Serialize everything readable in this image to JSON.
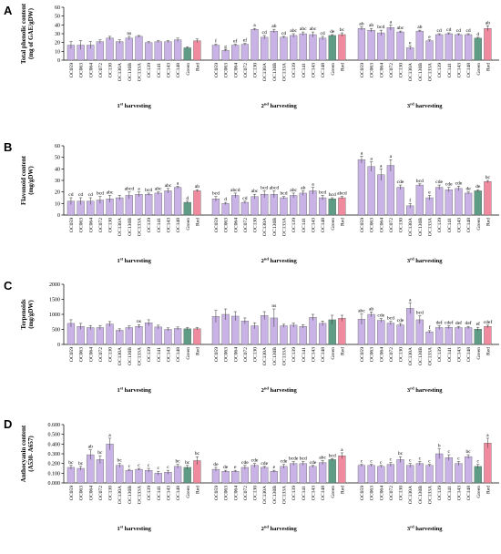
{
  "colors": {
    "purple": "#C9B3E6",
    "green": "#5E9C86",
    "red": "#F08A9E",
    "axis": "#000000"
  },
  "chart_data": [
    {
      "type": "bar",
      "panel": "A",
      "ylabel_lines": [
        "Total phenolic content",
        "(mg of GAE/gDW)"
      ],
      "ylim": [
        0,
        60
      ],
      "yticks": [
        0,
        10,
        20,
        30,
        40,
        50,
        60
      ],
      "categories": [
        "OC059",
        "OC063",
        "OC064",
        "OC072",
        "OC130",
        "OC130A",
        "OC130B",
        "OC133A",
        "OC139",
        "OC141",
        "OC143",
        "OC148",
        "Green",
        "Red"
      ],
      "groups": [
        {
          "label": "1",
          "suffix": "st",
          "rest": " harvesting",
          "values": [
            17,
            17,
            17,
            21,
            25,
            21,
            25,
            27,
            20,
            21,
            21,
            23,
            14,
            22
          ],
          "errors": [
            4,
            5,
            4,
            2,
            2,
            2,
            2,
            1,
            1,
            1,
            1,
            2,
            1,
            2
          ],
          "letters": [
            "",
            "",
            "",
            "",
            "",
            "",
            "ns",
            "",
            "",
            "",
            "",
            "",
            "",
            ""
          ]
        },
        {
          "label": "2",
          "suffix": "nd",
          "rest": " harvesting",
          "values": [
            17,
            11,
            17,
            18,
            35,
            26,
            33,
            26,
            28,
            30,
            29,
            25,
            28,
            29
          ],
          "errors": [
            1,
            1,
            1,
            1,
            1,
            2,
            2,
            1,
            2,
            2,
            3,
            2,
            1,
            2
          ],
          "letters": [
            "f",
            "g",
            "ef",
            "ef",
            "a",
            "cd",
            "ab",
            "cd",
            "abc",
            "abc",
            "abc",
            "cd",
            "de",
            "bc"
          ]
        },
        {
          "label": "3",
          "suffix": "rd",
          "rest": " harvesting",
          "values": [
            36,
            34,
            31,
            37,
            32,
            14,
            33,
            22,
            29,
            30,
            29,
            29,
            25,
            36
          ],
          "errors": [
            2,
            2,
            3,
            3,
            1,
            2,
            1,
            1,
            1,
            1,
            1,
            1,
            1,
            3
          ],
          "letters": [
            "ab",
            "ab",
            "bcd",
            "a",
            "abc",
            "e",
            "ab",
            "e",
            "cd",
            "cd",
            "cd",
            "cd",
            "d",
            "ab"
          ]
        }
      ]
    },
    {
      "type": "bar",
      "panel": "B",
      "ylabel_lines": [
        "Flavonoid content",
        "(mg/gDW)"
      ],
      "ylim": [
        0,
        60
      ],
      "yticks": [
        0,
        10,
        20,
        30,
        40,
        50,
        60
      ],
      "categories": [
        "OC059",
        "OC063",
        "OC064",
        "OC072",
        "OC130",
        "OC130A",
        "OC130B",
        "OC133A",
        "OC139",
        "OC141",
        "OC143",
        "OC148",
        "Green",
        "Red"
      ],
      "groups": [
        {
          "label": "1",
          "suffix": "st",
          "rest": " harvesting",
          "values": [
            12,
            12,
            12,
            13,
            14,
            15,
            17,
            18,
            18,
            19,
            21,
            24,
            11,
            21
          ],
          "errors": [
            3,
            3,
            3,
            3,
            3,
            2,
            3,
            2,
            1,
            1,
            2,
            1,
            1,
            1
          ],
          "letters": [
            "cd",
            "cd",
            "cd",
            "bcd",
            "abc",
            "",
            "abcd",
            "a",
            "bcd",
            "abc",
            "abc",
            "a",
            "d",
            "ab"
          ]
        },
        {
          "label": "2",
          "suffix": "nd",
          "rest": " harvesting",
          "values": [
            14,
            10,
            17,
            11,
            16,
            18,
            18,
            15,
            17,
            19,
            21,
            15,
            14,
            15
          ],
          "errors": [
            2,
            1,
            2,
            1,
            2,
            3,
            3,
            1,
            2,
            2,
            3,
            2,
            1,
            1
          ],
          "letters": [
            "bcd",
            "d",
            "abcd",
            "cd",
            "abc",
            "bcd",
            "abcd",
            "bcd",
            "abc",
            "ab",
            "a",
            "bcd",
            "bcd",
            "abcd"
          ]
        },
        {
          "label": "3",
          "suffix": "rd",
          "rest": " harvesting",
          "values": [
            48,
            42,
            35,
            43,
            24,
            8,
            26,
            15,
            24,
            22,
            23,
            19,
            21,
            29
          ],
          "errors": [
            3,
            4,
            5,
            5,
            2,
            2,
            1,
            2,
            2,
            2,
            2,
            1,
            1,
            1
          ],
          "letters": [
            "a",
            "a",
            "a",
            "a",
            "cde",
            "f",
            "bcd",
            "e",
            "cde",
            "cde",
            "cde",
            "de",
            "de",
            "bc"
          ]
        }
      ]
    },
    {
      "type": "bar",
      "panel": "C",
      "ylabel_lines": [
        "Terpenoids",
        "(mg/gDW)"
      ],
      "ylim": [
        0,
        2000
      ],
      "yticks": [
        0,
        500,
        1000,
        1500,
        2000
      ],
      "categories": [
        "OC059",
        "OC063",
        "OC064",
        "OC072",
        "OC130",
        "OC130A",
        "OC130B",
        "OC133A",
        "OC139",
        "OC141",
        "OC143",
        "OC148",
        "Green",
        "Red"
      ],
      "groups": [
        {
          "label": "1",
          "suffix": "st",
          "rest": " harvesting",
          "values": [
            700,
            600,
            560,
            560,
            680,
            470,
            560,
            600,
            720,
            580,
            500,
            530,
            520,
            520
          ],
          "errors": [
            120,
            100,
            70,
            70,
            80,
            50,
            60,
            60,
            100,
            60,
            50,
            50,
            40,
            40
          ],
          "letters": [
            "",
            "",
            "",
            "",
            "",
            "",
            "",
            "ns",
            "",
            "",
            "",
            "",
            "",
            ""
          ]
        },
        {
          "label": "2",
          "suffix": "nd",
          "rest": " harvesting",
          "values": [
            930,
            1000,
            940,
            780,
            620,
            960,
            880,
            620,
            640,
            600,
            900,
            700,
            820,
            870
          ],
          "errors": [
            200,
            180,
            150,
            100,
            100,
            130,
            300,
            50,
            70,
            60,
            100,
            80,
            150,
            100
          ],
          "letters": [
            "",
            "",
            "",
            "",
            "",
            "",
            "ns",
            "",
            "",
            "",
            "",
            "",
            "",
            ""
          ]
        },
        {
          "label": "3",
          "suffix": "rd",
          "rest": " harvesting",
          "values": [
            840,
            1000,
            800,
            710,
            650,
            1200,
            820,
            420,
            560,
            570,
            560,
            560,
            510,
            600
          ],
          "errors": [
            170,
            80,
            60,
            60,
            50,
            180,
            130,
            40,
            60,
            50,
            40,
            40,
            60,
            40
          ],
          "letters": [
            "abc",
            "ab",
            "cde",
            "bcd",
            "cde",
            "a",
            "bcd",
            "f",
            "def",
            "cdef",
            "def",
            "def",
            "ef",
            "cdef"
          ]
        }
      ]
    },
    {
      "type": "bar",
      "panel": "D",
      "ylabel_lines": [
        "Anthocyanin content",
        "(A530- A657)"
      ],
      "ylim": [
        0,
        0.6
      ],
      "yticks": [
        0,
        0.1,
        0.2,
        0.3,
        0.4,
        0.5,
        0.6
      ],
      "ytick_labels": [
        "0.000",
        "0.100",
        "0.200",
        "0.300",
        "0.400",
        "0.500",
        "0.600"
      ],
      "categories": [
        "OC059",
        "OC063",
        "OC064",
        "OC072",
        "OC130",
        "OC130A",
        "OC130B",
        "OC133A",
        "OC139",
        "OC141",
        "OC143",
        "OC148",
        "Green",
        "Red"
      ],
      "groups": [
        {
          "label": "1",
          "suffix": "st",
          "rest": " harvesting",
          "values": [
            0.16,
            0.15,
            0.29,
            0.24,
            0.4,
            0.18,
            0.13,
            0.14,
            0.13,
            0.1,
            0.11,
            0.17,
            0.16,
            0.23
          ],
          "errors": [
            0.02,
            0.02,
            0.05,
            0.04,
            0.06,
            0.02,
            0.01,
            0.01,
            0.02,
            0.02,
            0.02,
            0.02,
            0.02,
            0.04
          ],
          "letters": [
            "bc",
            "bc",
            "ab",
            "bc",
            "a",
            "bc",
            "c",
            "c",
            "c",
            "c",
            "c",
            "bc",
            "bc",
            "bc"
          ]
        },
        {
          "label": "2",
          "suffix": "nd",
          "rest": " harvesting",
          "values": [
            0.14,
            0.12,
            0.12,
            0.16,
            0.18,
            0.16,
            0.12,
            0.17,
            0.2,
            0.2,
            0.17,
            0.21,
            0.24,
            0.28
          ],
          "errors": [
            0.02,
            0.01,
            0.01,
            0.02,
            0.02,
            0.01,
            0.01,
            0.02,
            0.02,
            0.02,
            0.01,
            0.02,
            0.01,
            0.03
          ],
          "letters": [
            "de",
            "de",
            "e",
            "cde",
            "cde",
            "cde",
            "e",
            "cde",
            "bcde",
            "bcd",
            "cde",
            "abc",
            "bcd",
            "a"
          ]
        },
        {
          "label": "3",
          "suffix": "rd",
          "rest": " harvesting",
          "values": [
            0.18,
            0.18,
            0.17,
            0.19,
            0.24,
            0.18,
            0.2,
            0.18,
            0.3,
            0.26,
            0.2,
            0.27,
            0.17,
            0.41
          ],
          "errors": [
            0.01,
            0.01,
            0.01,
            0.02,
            0.03,
            0.02,
            0.02,
            0.01,
            0.05,
            0.03,
            0.02,
            0.02,
            0.02,
            0.05
          ],
          "letters": [
            "c",
            "c",
            "c",
            "c",
            "bc",
            "c",
            "c",
            "c",
            "b",
            "c",
            "c",
            "bc",
            "c",
            "a"
          ]
        }
      ]
    }
  ]
}
